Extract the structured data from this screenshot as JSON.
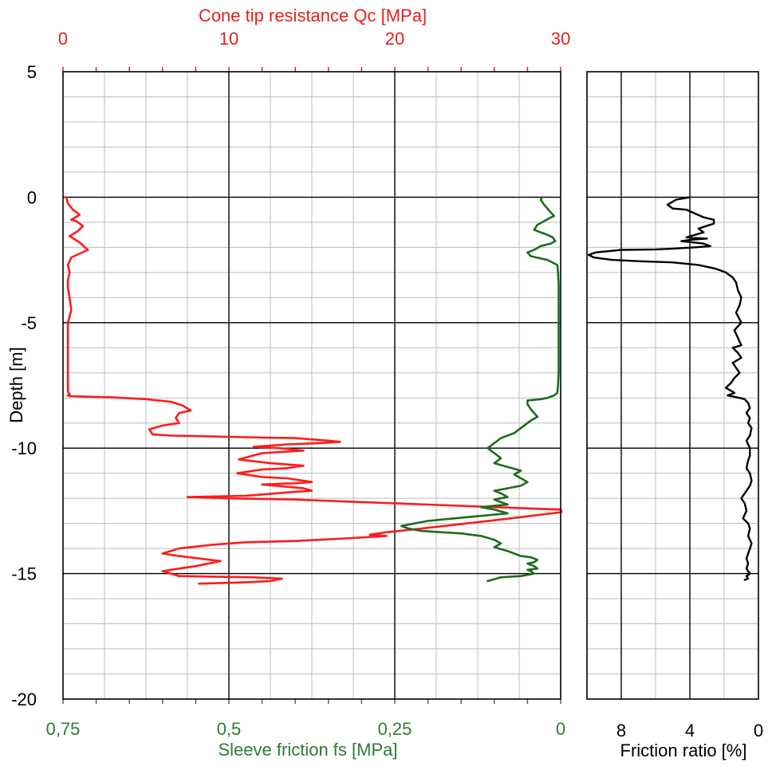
{
  "chart_data": [
    {
      "type": "line",
      "top_axis_title": "Cone tip resistance Qc [MPa]",
      "top_axis_ticks": [
        "0",
        "10",
        "20",
        "30"
      ],
      "top_xlim": [
        0,
        30
      ],
      "bottom_axis_title": "Sleeve friction fs [MPa]",
      "bottom_axis_ticks": [
        "0,75",
        "0,5",
        "0,25",
        "0"
      ],
      "bottom_xlim": [
        0.75,
        0
      ],
      "ylabel": "Depth [m]",
      "y_ticks": [
        "5",
        "0",
        "-5",
        "-10",
        "-15",
        "-20"
      ],
      "ylim": [
        -20,
        5
      ],
      "grid": true,
      "colors": {
        "qc": "#ff1a1a",
        "fs": "#1e6b1e",
        "top_axis": "#e8201e",
        "bottom_axis": "#2e7d32"
      },
      "series": [
        {
          "key": "qc",
          "axis": "top",
          "x": [
            0.2,
            0.3,
            0.6,
            1.0,
            0.5,
            0.8,
            1.2,
            0.9,
            0.4,
            1.0,
            1.5,
            0.5,
            0.3,
            0.4,
            0.3,
            0.3,
            0.4,
            0.5,
            0.3,
            0.3,
            0.3,
            0.3,
            0.3,
            0.3,
            0.3,
            0.3,
            0.4,
            0.3,
            0.5,
            1.5,
            3,
            5,
            6.5,
            7.2,
            7.7,
            7.0,
            6.8,
            7.0,
            6.0,
            5.2,
            5.4,
            6.5,
            8,
            10,
            12,
            14,
            16,
            16.7,
            15.5,
            13.5,
            11.5,
            13.0,
            14.5,
            12.0,
            10.6,
            12.5,
            14.5,
            13.5,
            12.0,
            10.5,
            12,
            13.5,
            15,
            14,
            12,
            14.5,
            15,
            13.8,
            12,
            11,
            7.5,
            10,
            14,
            18,
            22,
            26,
            30,
            30.2,
            27,
            23,
            21,
            19.5,
            18.5,
            19.5,
            17,
            14,
            11,
            9,
            7,
            6.0,
            7.0,
            9.5,
            8,
            7.0,
            6.0,
            7,
            11.5,
            13.2,
            12.5,
            11,
            8.2
          ],
          "y": [
            0,
            -0.25,
            -0.5,
            -0.7,
            -0.9,
            -0.95,
            -1.15,
            -1.35,
            -1.55,
            -1.8,
            -2.1,
            -2.4,
            -2.7,
            -3.0,
            -3.3,
            -3.6,
            -4.0,
            -4.5,
            -5.0,
            -5.5,
            -6.0,
            -6.5,
            -7.0,
            -7.3,
            -7.6,
            -7.75,
            -7.85,
            -7.9,
            -7.93,
            -7.95,
            -7.98,
            -8.05,
            -8.15,
            -8.3,
            -8.5,
            -8.6,
            -8.8,
            -9.0,
            -9.1,
            -9.25,
            -9.45,
            -9.5,
            -9.52,
            -9.55,
            -9.58,
            -9.6,
            -9.7,
            -9.75,
            -9.8,
            -9.85,
            -9.95,
            -10.0,
            -10.1,
            -10.2,
            -10.45,
            -10.6,
            -10.7,
            -10.8,
            -10.85,
            -11.0,
            -11.15,
            -11.2,
            -11.35,
            -11.4,
            -11.45,
            -11.6,
            -11.7,
            -11.75,
            -11.85,
            -11.9,
            -11.95,
            -12.0,
            -12.05,
            -12.15,
            -12.25,
            -12.35,
            -12.45,
            -12.55,
            -12.8,
            -13.1,
            -13.25,
            -13.35,
            -13.45,
            -13.5,
            -13.6,
            -13.7,
            -13.75,
            -13.85,
            -14.0,
            -14.2,
            -14.3,
            -14.5,
            -14.7,
            -14.8,
            -14.9,
            -15.1,
            -15.15,
            -15.2,
            -15.3,
            -15.35,
            -15.4
          ]
        },
        {
          "key": "fs",
          "axis": "bottom",
          "x": [
            0.028,
            0.03,
            0.025,
            0.02,
            0.015,
            0.01,
            0.018,
            0.028,
            0.035,
            0.04,
            0.03,
            0.02,
            0.012,
            0.008,
            0.015,
            0.03,
            0.04,
            0.05,
            0.045,
            0.02,
            0.005,
            0.004,
            0.003,
            0.003,
            0.003,
            0.003,
            0.003,
            0.004,
            0.005,
            0.01,
            0.02,
            0.03,
            0.05,
            0.05,
            0.045,
            0.04,
            0.035,
            0.045,
            0.055,
            0.07,
            0.09,
            0.1,
            0.11,
            0.1,
            0.09,
            0.1,
            0.08,
            0.06,
            0.07,
            0.06,
            0.05,
            0.06,
            0.08,
            0.1,
            0.09,
            0.08,
            0.1,
            0.09,
            0.08,
            0.1,
            0.12,
            0.1,
            0.08,
            0.12,
            0.16,
            0.2,
            0.22,
            0.24,
            0.23,
            0.21,
            0.18,
            0.15,
            0.12,
            0.1,
            0.09,
            0.1,
            0.08,
            0.07,
            0.06,
            0.045,
            0.035,
            0.04,
            0.05,
            0.04,
            0.035,
            0.05,
            0.045,
            0.04,
            0.05,
            0.06,
            0.09,
            0.11
          ],
          "y": [
            0,
            -0.1,
            -0.3,
            -0.45,
            -0.6,
            -0.75,
            -0.85,
            -1.0,
            -1.1,
            -1.3,
            -1.4,
            -1.5,
            -1.6,
            -1.75,
            -1.85,
            -1.95,
            -2.1,
            -2.2,
            -2.35,
            -2.5,
            -2.7,
            -3.0,
            -3.5,
            -4.0,
            -5.0,
            -6.0,
            -7.0,
            -7.5,
            -7.8,
            -7.9,
            -8.0,
            -8.05,
            -8.1,
            -8.25,
            -8.45,
            -8.6,
            -8.75,
            -8.9,
            -9.1,
            -9.4,
            -9.6,
            -9.8,
            -10.0,
            -10.2,
            -10.4,
            -10.6,
            -10.75,
            -10.9,
            -11.05,
            -11.2,
            -11.35,
            -11.5,
            -11.6,
            -11.7,
            -11.8,
            -11.95,
            -12.05,
            -12.15,
            -12.25,
            -12.3,
            -12.35,
            -12.45,
            -12.6,
            -12.7,
            -12.8,
            -12.9,
            -13.0,
            -13.1,
            -13.2,
            -13.3,
            -13.35,
            -13.4,
            -13.5,
            -13.65,
            -13.8,
            -13.95,
            -14.1,
            -14.2,
            -14.3,
            -14.35,
            -14.45,
            -14.55,
            -14.6,
            -14.7,
            -14.8,
            -14.85,
            -14.9,
            -15.0,
            -15.05,
            -15.1,
            -15.15,
            -15.3
          ]
        }
      ]
    },
    {
      "type": "line",
      "xlabel": "Friction ratio [%]",
      "x_ticks": [
        "8",
        "4",
        "0"
      ],
      "xlim": [
        10,
        0
      ],
      "ylim": [
        -20,
        5
      ],
      "grid": true,
      "colors": {
        "line": "#000000"
      },
      "series": [
        {
          "key": "rf",
          "x": [
            4.0,
            4.8,
            5.3,
            5.0,
            4.2,
            3.2,
            2.6,
            2.6,
            3.5,
            3.2,
            4.2,
            3.0,
            4.0,
            4.5,
            3.2,
            2.8,
            3.8,
            5.0,
            6.0,
            8.0,
            9.5,
            9.9,
            9.6,
            8.5,
            7.0,
            5.0,
            3.5,
            2.5,
            1.9,
            1.5,
            1.3,
            1.2,
            1.0,
            1.1,
            1.3,
            1.0,
            1.4,
            1.2,
            1.0,
            1.5,
            1.2,
            1.0,
            1.5,
            1.3,
            1.1,
            1.4,
            1.6,
            1.9,
            1.5,
            1.4,
            1.8,
            1.1,
            0.8,
            0.6,
            0.5,
            0.7,
            0.5,
            0.6,
            0.4,
            0.5,
            0.7,
            0.5,
            0.5,
            0.6,
            0.7,
            0.5,
            0.4,
            0.5,
            0.8,
            0.9,
            1.0,
            0.8,
            0.7,
            0.9,
            0.6,
            0.5,
            0.6,
            0.4,
            0.5,
            0.6,
            0.7,
            0.6,
            0.7,
            0.6,
            0.5,
            0.7,
            0.6,
            0.8
          ],
          "y": [
            0.0,
            -0.1,
            -0.3,
            -0.45,
            -0.5,
            -0.8,
            -0.9,
            -1.05,
            -1.25,
            -1.4,
            -1.6,
            -1.65,
            -1.7,
            -1.75,
            -1.85,
            -1.95,
            -2.0,
            -2.05,
            -2.08,
            -2.1,
            -2.2,
            -2.3,
            -2.4,
            -2.5,
            -2.55,
            -2.6,
            -2.7,
            -2.85,
            -3.0,
            -3.2,
            -3.4,
            -3.7,
            -4.0,
            -4.3,
            -4.6,
            -5.0,
            -5.3,
            -5.6,
            -5.9,
            -6.0,
            -6.2,
            -6.4,
            -6.6,
            -6.8,
            -7.0,
            -7.2,
            -7.4,
            -7.6,
            -7.75,
            -7.8,
            -7.9,
            -8.0,
            -8.05,
            -8.2,
            -8.4,
            -8.6,
            -8.8,
            -9.0,
            -9.2,
            -9.5,
            -9.7,
            -10.0,
            -10.3,
            -10.5,
            -10.8,
            -11.0,
            -11.3,
            -11.5,
            -11.8,
            -11.9,
            -12.0,
            -12.2,
            -12.5,
            -12.8,
            -13.0,
            -13.2,
            -13.5,
            -13.8,
            -14.0,
            -14.2,
            -14.4,
            -14.6,
            -14.8,
            -14.9,
            -15.0,
            -15.1,
            -15.2,
            -15.25
          ]
        }
      ]
    }
  ]
}
